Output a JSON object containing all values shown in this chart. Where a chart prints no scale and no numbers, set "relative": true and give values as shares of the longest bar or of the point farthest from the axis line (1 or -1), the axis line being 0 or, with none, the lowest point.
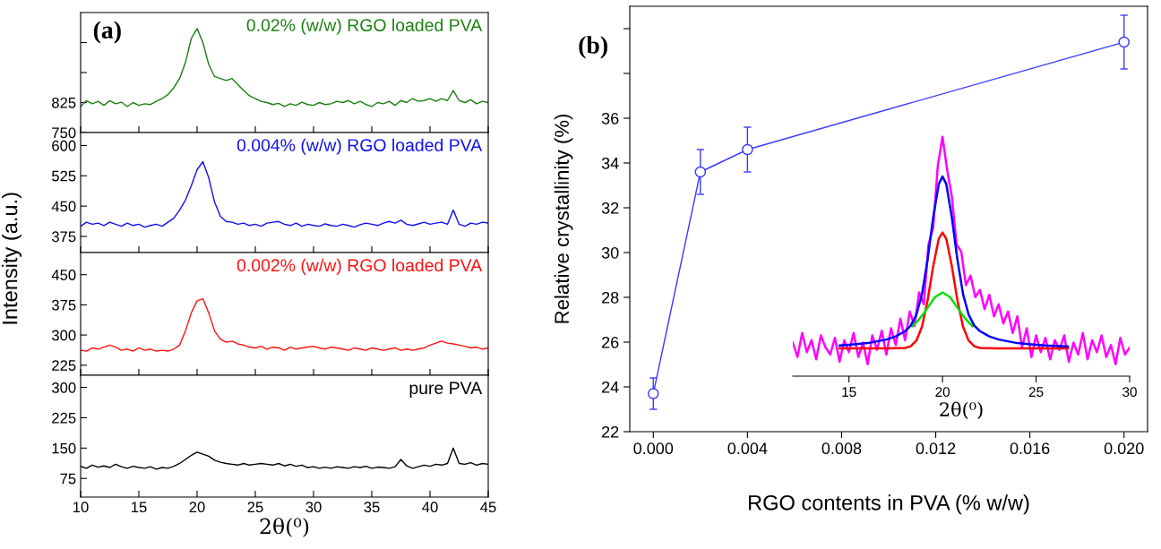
{
  "chart_data": [
    {
      "type": "line",
      "title": null,
      "annotations": [
        "(a)"
      ],
      "tick_labels": "y",
      "xlim": [
        10,
        45
      ],
      "xticks": [
        10,
        15,
        20,
        25,
        30,
        35,
        40,
        45
      ],
      "ylim": [
        750,
        1050
      ],
      "yticks": [
        750,
        825,
        {
          "value": 900,
          "label": null
        },
        {
          "value": 975,
          "label": null
        }
      ],
      "x": [
        10,
        10.5,
        11,
        11.5,
        12,
        12.5,
        13,
        13.5,
        14,
        14.5,
        15,
        15.5,
        16,
        16.5,
        17,
        17.5,
        18,
        18.5,
        19,
        19.5,
        20,
        20.5,
        21,
        21.5,
        22,
        22.5,
        23,
        23.5,
        24,
        24.5,
        25,
        25.5,
        26,
        26.5,
        27,
        27.5,
        28,
        28.5,
        29,
        29.5,
        30,
        30.5,
        31,
        31.5,
        32,
        32.5,
        33,
        33.5,
        34,
        34.5,
        35,
        35.5,
        36,
        36.5,
        37,
        37.5,
        38,
        38.5,
        39,
        39.5,
        40,
        40.5,
        41,
        41.5,
        42,
        42.5,
        43,
        43.5,
        44,
        44.5,
        45
      ],
      "series": [
        {
          "name": "0.02% (w/w) RGO loaded PVA",
          "color": "#1a8010",
          "values": [
            815,
            830,
            822,
            828,
            818,
            830,
            822,
            826,
            815,
            825,
            818,
            822,
            820,
            828,
            835,
            845,
            862,
            885,
            925,
            985,
            1010,
            975,
            920,
            890,
            885,
            880,
            885,
            870,
            855,
            842,
            835,
            828,
            825,
            820,
            823,
            815,
            822,
            818,
            826,
            820,
            818,
            825,
            820,
            822,
            828,
            825,
            830,
            822,
            828,
            820,
            815,
            825,
            822,
            828,
            818,
            830,
            825,
            835,
            828,
            830,
            835,
            828,
            835,
            830,
            855,
            830,
            825,
            832,
            822,
            828,
            825
          ]
        }
      ]
    },
    {
      "type": "line",
      "tick_labels": "y",
      "xlim": [
        10,
        45
      ],
      "xticks": [
        10,
        15,
        20,
        25,
        30,
        35,
        40,
        45
      ],
      "ylim": [
        335,
        632
      ],
      "yticks": [
        375,
        450,
        525,
        600
      ],
      "x": [
        10,
        10.5,
        11,
        11.5,
        12,
        12.5,
        13,
        13.5,
        14,
        14.5,
        15,
        15.5,
        16,
        16.5,
        17,
        17.5,
        18,
        18.5,
        19,
        19.5,
        20,
        20.5,
        21,
        21.5,
        22,
        22.5,
        23,
        23.5,
        24,
        24.5,
        25,
        25.5,
        26,
        26.5,
        27,
        27.5,
        28,
        28.5,
        29,
        29.5,
        30,
        30.5,
        31,
        31.5,
        32,
        32.5,
        33,
        33.5,
        34,
        34.5,
        35,
        35.5,
        36,
        36.5,
        37,
        37.5,
        38,
        38.5,
        39,
        39.5,
        40,
        40.5,
        41,
        41.5,
        42,
        42.5,
        43,
        43.5,
        44,
        44.5,
        45
      ],
      "series": [
        {
          "name": "0.004% (w/w) RGO loaded PVA",
          "color": "#1010f0",
          "values": [
            400,
            410,
            405,
            408,
            402,
            410,
            405,
            400,
            408,
            402,
            405,
            398,
            402,
            405,
            400,
            410,
            420,
            440,
            465,
            500,
            540,
            560,
            520,
            460,
            425,
            412,
            410,
            405,
            408,
            402,
            405,
            400,
            408,
            410,
            412,
            405,
            402,
            408,
            400,
            405,
            402,
            400,
            406,
            402,
            400,
            405,
            402,
            398,
            404,
            408,
            405,
            402,
            408,
            412,
            408,
            415,
            405,
            402,
            406,
            410,
            405,
            408,
            410,
            405,
            440,
            405,
            400,
            408,
            405,
            410,
            408
          ]
        }
      ]
    },
    {
      "type": "line",
      "ylabel": "Intensity (a.u.)",
      "tick_labels": "y",
      "xlim": [
        10,
        45
      ],
      "xticks": [
        10,
        15,
        20,
        25,
        30,
        35,
        40,
        45
      ],
      "ylim": [
        200,
        505
      ],
      "yticks": [
        225,
        300,
        375,
        450
      ],
      "x": [
        10,
        10.5,
        11,
        11.5,
        12,
        12.5,
        13,
        13.5,
        14,
        14.5,
        15,
        15.5,
        16,
        16.5,
        17,
        17.5,
        18,
        18.5,
        19,
        19.5,
        20,
        20.5,
        21,
        21.5,
        22,
        22.5,
        23,
        23.5,
        24,
        24.5,
        25,
        25.5,
        26,
        26.5,
        27,
        27.5,
        28,
        28.5,
        29,
        29.5,
        30,
        30.5,
        31,
        31.5,
        32,
        32.5,
        33,
        33.5,
        34,
        34.5,
        35,
        35.5,
        36,
        36.5,
        37,
        37.5,
        38,
        38.5,
        39,
        39.5,
        40,
        40.5,
        41,
        41.5,
        42,
        42.5,
        43,
        43.5,
        44,
        44.5,
        45
      ],
      "series": [
        {
          "name": "0.002% (w/w) RGO loaded PVA",
          "color": "#ff1010",
          "values": [
            262,
            260,
            268,
            265,
            270,
            275,
            270,
            262,
            265,
            260,
            268,
            262,
            265,
            260,
            262,
            260,
            265,
            275,
            310,
            355,
            385,
            390,
            355,
            310,
            290,
            282,
            285,
            278,
            275,
            270,
            268,
            272,
            265,
            270,
            268,
            262,
            270,
            265,
            268,
            270,
            272,
            268,
            265,
            270,
            268,
            265,
            262,
            268,
            265,
            262,
            268,
            265,
            262,
            265,
            268,
            262,
            265,
            262,
            265,
            268,
            275,
            280,
            285,
            280,
            278,
            275,
            272,
            268,
            270,
            265,
            268
          ]
        }
      ]
    },
    {
      "type": "line",
      "xlabel": "2θ(⁰)",
      "xlim": [
        10,
        45
      ],
      "xticks": [
        10,
        15,
        20,
        25,
        30,
        35,
        40,
        45
      ],
      "ylim": [
        29,
        330
      ],
      "yticks": [
        75,
        150,
        225,
        300
      ],
      "x": [
        10,
        10.5,
        11,
        11.5,
        12,
        12.5,
        13,
        13.5,
        14,
        14.5,
        15,
        15.5,
        16,
        16.5,
        17,
        17.5,
        18,
        18.5,
        19,
        19.5,
        20,
        20.5,
        21,
        21.5,
        22,
        22.5,
        23,
        23.5,
        24,
        24.5,
        25,
        25.5,
        26,
        26.5,
        27,
        27.5,
        28,
        28.5,
        29,
        29.5,
        30,
        30.5,
        31,
        31.5,
        32,
        32.5,
        33,
        33.5,
        34,
        34.5,
        35,
        35.5,
        36,
        36.5,
        37,
        37.5,
        38,
        38.5,
        39,
        39.5,
        40,
        40.5,
        41,
        41.5,
        42,
        42.5,
        43,
        43.5,
        44,
        44.5,
        45
      ],
      "series": [
        {
          "name": "pure PVA",
          "color": "#000000",
          "values": [
            105,
            100,
            108,
            103,
            106,
            102,
            110,
            104,
            100,
            105,
            102,
            100,
            104,
            98,
            102,
            100,
            105,
            112,
            122,
            132,
            140,
            135,
            130,
            120,
            115,
            112,
            110,
            108,
            112,
            108,
            110,
            112,
            110,
            108,
            112,
            106,
            110,
            105,
            108,
            102,
            104,
            100,
            103,
            100,
            104,
            102,
            100,
            104,
            102,
            105,
            100,
            103,
            102,
            100,
            104,
            122,
            106,
            100,
            104,
            108,
            105,
            110,
            108,
            112,
            150,
            112,
            110,
            114,
            108,
            112,
            110
          ]
        }
      ]
    },
    {
      "type": "line",
      "annotations": [
        "(b)"
      ],
      "xlabel": "RGO contents in PVA (% w/w)",
      "ylabel": "Relative crystallinity (%)",
      "marker": "circle",
      "xlim": [
        -0.001,
        0.021
      ],
      "xticks": [
        {
          "value": 0,
          "label": "0.000"
        },
        0.004,
        0.008,
        0.012,
        0.016,
        {
          "value": 0.02,
          "label": "0.020"
        }
      ],
      "ylim": [
        22,
        41
      ],
      "yticks": [
        22,
        24,
        26,
        28,
        30,
        32,
        34,
        36,
        {
          "value": 38,
          "label": null
        },
        {
          "value": 40,
          "label": null
        }
      ],
      "x": [
        0,
        0.002,
        0.004,
        0.02
      ],
      "series": [
        {
          "color": "#3a3aff",
          "values": [
            23.7,
            33.6,
            34.6,
            39.4
          ],
          "errors": [
            0.7,
            1.0,
            1.0,
            1.2
          ]
        }
      ]
    },
    {
      "type": "line",
      "relative": true,
      "xlabel": "2θ(⁰)",
      "tick_labels": "x",
      "xlim": [
        12,
        30
      ],
      "xticks": [
        15,
        20,
        25,
        30
      ],
      "series": [
        {
          "color": "#ff00ff",
          "x": [
            12,
            12.25,
            12.5,
            12.75,
            13,
            13.25,
            13.5,
            13.75,
            14,
            14.25,
            14.5,
            14.75,
            15,
            15.25,
            15.5,
            15.75,
            16,
            16.25,
            16.5,
            16.75,
            17,
            17.25,
            17.5,
            17.75,
            18,
            18.25,
            18.5,
            18.75,
            19,
            19.25,
            19.5,
            19.75,
            20,
            20.25,
            20.5,
            20.75,
            21,
            21.25,
            21.5,
            21.75,
            22,
            22.25,
            22.5,
            22.75,
            23,
            23.25,
            23.5,
            23.75,
            24,
            24.25,
            24.5,
            24.75,
            25,
            25.25,
            25.5,
            25.75,
            26,
            26.25,
            26.5,
            26.75,
            27,
            27.25,
            27.5,
            27.75,
            28,
            28.25,
            28.5,
            28.75,
            29,
            29.25,
            29.5,
            29.75,
            30
          ],
          "values": [
            0.14,
            0.08,
            0.18,
            0.1,
            0.15,
            0.07,
            0.17,
            0.12,
            0.09,
            0.16,
            0.06,
            0.15,
            0.1,
            0.18,
            0.08,
            0.14,
            0.05,
            0.17,
            0.11,
            0.19,
            0.09,
            0.2,
            0.13,
            0.24,
            0.15,
            0.27,
            0.21,
            0.35,
            0.3,
            0.55,
            0.62,
            0.88,
            1.0,
            0.86,
            0.75,
            0.55,
            0.52,
            0.38,
            0.42,
            0.33,
            0.36,
            0.28,
            0.34,
            0.25,
            0.3,
            0.22,
            0.27,
            0.18,
            0.25,
            0.12,
            0.2,
            0.08,
            0.17,
            0.1,
            0.16,
            0.07,
            0.15,
            0.11,
            0.17,
            0.06,
            0.14,
            0.09,
            0.18,
            0.07,
            0.15,
            0.1,
            0.17,
            0.08,
            0.13,
            0.05,
            0.16,
            0.09,
            0.12
          ]
        },
        {
          "color": "#ff0000",
          "x": [
            14.5,
            16,
            17,
            18,
            18.3,
            18.6,
            18.9,
            19.2,
            19.5,
            19.8,
            20,
            20.2,
            20.5,
            20.8,
            21.1,
            21.4,
            21.7,
            22,
            23,
            24,
            26.7
          ],
          "values": [
            0.116,
            0.116,
            0.116,
            0.118,
            0.125,
            0.148,
            0.206,
            0.315,
            0.458,
            0.574,
            0.6,
            0.574,
            0.458,
            0.315,
            0.206,
            0.148,
            0.125,
            0.118,
            0.116,
            0.116,
            0.116
          ]
        },
        {
          "color": "#00e000",
          "x": [
            18.4,
            18.7,
            19,
            19.3,
            19.6,
            20,
            20.4,
            20.7,
            21,
            21.3,
            21.6
          ],
          "values": [
            0.209,
            0.233,
            0.263,
            0.297,
            0.33,
            0.35,
            0.33,
            0.297,
            0.263,
            0.233,
            0.209
          ]
        },
        {
          "color": "#0000ff",
          "x": [
            14.5,
            15,
            16,
            17,
            17.5,
            18,
            18.3,
            18.6,
            18.9,
            19.2,
            19.5,
            19.8,
            20,
            20.2,
            20.5,
            20.8,
            21.1,
            21.4,
            21.7,
            22,
            22.5,
            23,
            24,
            25,
            25.5,
            26.7
          ],
          "values": [
            0.128,
            0.131,
            0.138,
            0.153,
            0.166,
            0.188,
            0.211,
            0.256,
            0.342,
            0.485,
            0.662,
            0.803,
            0.834,
            0.803,
            0.662,
            0.485,
            0.342,
            0.256,
            0.211,
            0.188,
            0.166,
            0.153,
            0.138,
            0.131,
            0.128,
            0.124
          ]
        }
      ]
    }
  ]
}
